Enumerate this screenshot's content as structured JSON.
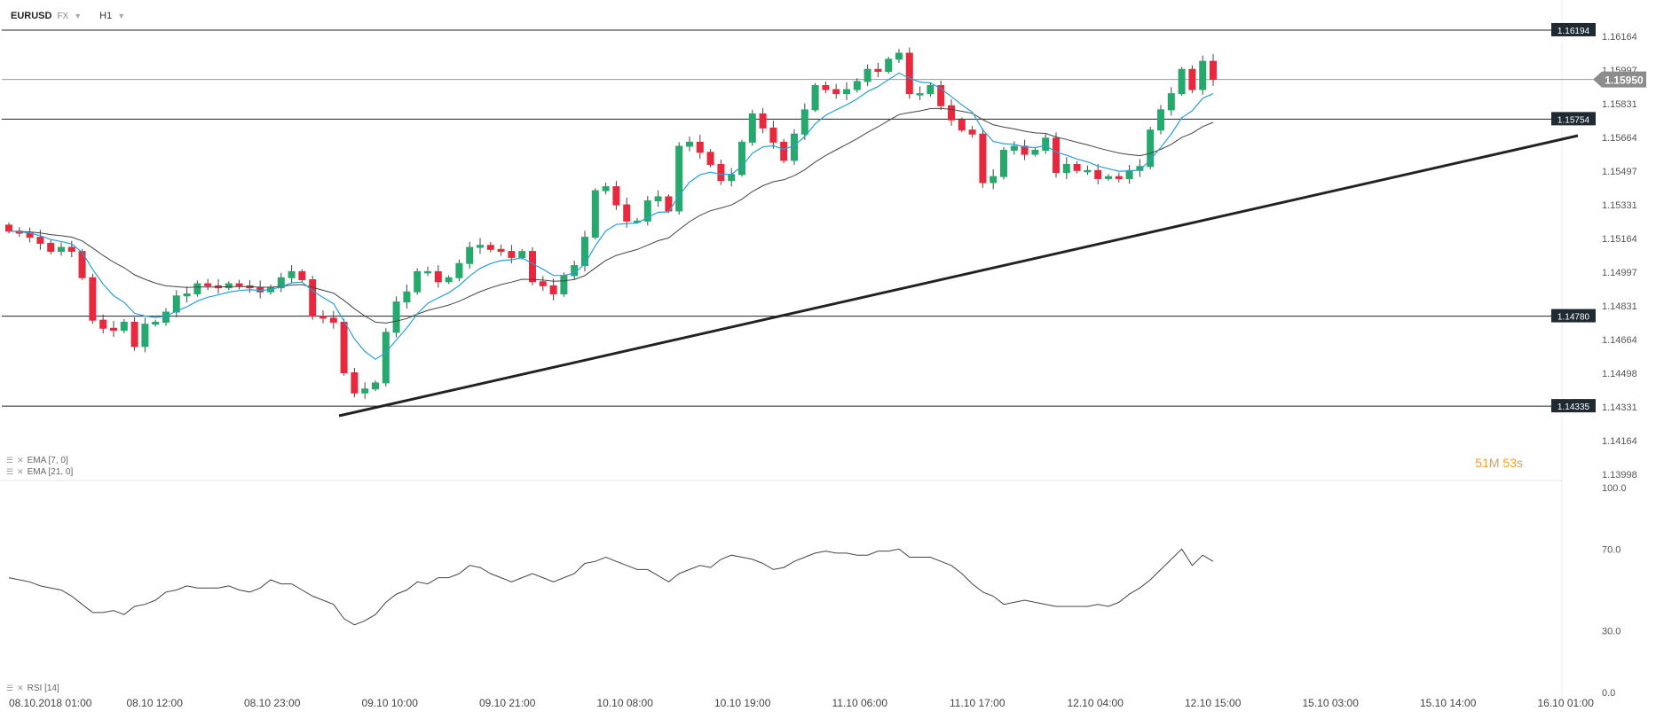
{
  "header": {
    "symbol": "EURUSD",
    "market": "FX",
    "timeframe": "H1"
  },
  "indicators": {
    "ema_fast": "EMA [7, 0]",
    "ema_slow": "EMA [21, 0]",
    "rsi": "RSI [14]"
  },
  "countdown": {
    "minutes": "51",
    "minutes_unit": "M",
    "seconds": "53",
    "seconds_unit": "s"
  },
  "colors": {
    "up": "#26a96c",
    "down": "#e8283c",
    "ema_fast": "#2a9fd6",
    "ema_slow": "#444444",
    "trendline": "#222222",
    "rsi": "#444444",
    "level_label_bg": "#1f2a33",
    "current_price_bg": "#8c8c8c"
  },
  "chart_data": [
    {
      "type": "candlestick",
      "symbol": "EURUSD",
      "interval": "H1",
      "ylim": [
        1.13998,
        1.16264
      ],
      "y_ticks": [
        "1.16164",
        "1.15997",
        "1.15831",
        "1.15664",
        "1.15497",
        "1.15331",
        "1.15164",
        "1.14997",
        "1.14831",
        "1.14664",
        "1.14498",
        "1.14331",
        "1.14164",
        "1.13998"
      ],
      "x_tick_labels": [
        "08.10.2018  01:00",
        "08.10  12:00",
        "08.10  23:00",
        "09.10  10:00",
        "09.10  21:00",
        "10.10  08:00",
        "10.10  19:00",
        "11.10  06:00",
        "11.10  17:00",
        "12.10  04:00",
        "12.10  15:00",
        "15.10  03:00",
        "15.10  14:00",
        "16.10  01:00"
      ],
      "horizontal_levels": [
        "1.16194",
        "1.15754",
        "1.14780",
        "1.14335"
      ],
      "current_price": "1.15950",
      "ohlc_close": [
        1.152,
        1.1519,
        1.1517,
        1.1514,
        1.151,
        1.1512,
        1.151,
        1.1497,
        1.1476,
        1.1472,
        1.1471,
        1.1475,
        1.1463,
        1.1474,
        1.1475,
        1.148,
        1.1488,
        1.1489,
        1.1494,
        1.1493,
        1.1492,
        1.1494,
        1.1493,
        1.1492,
        1.149,
        1.1492,
        1.1497,
        1.15,
        1.1496,
        1.1478,
        1.1477,
        1.1475,
        1.145,
        1.144,
        1.1442,
        1.1445,
        1.147,
        1.1485,
        1.149,
        1.15,
        1.15,
        1.1495,
        1.1497,
        1.1504,
        1.1512,
        1.1513,
        1.1511,
        1.151,
        1.1507,
        1.151,
        1.1495,
        1.1493,
        1.1489,
        1.1498,
        1.1503,
        1.1517,
        1.154,
        1.1542,
        1.1533,
        1.1525,
        1.1525,
        1.1535,
        1.1537,
        1.153,
        1.1562,
        1.1564,
        1.1559,
        1.1553,
        1.1545,
        1.1548,
        1.1564,
        1.1578,
        1.1571,
        1.1564,
        1.1555,
        1.1568,
        1.158,
        1.1592,
        1.159,
        1.1588,
        1.159,
        1.1594,
        1.16,
        1.1599,
        1.1605,
        1.1608,
        1.1588,
        1.1588,
        1.1592,
        1.1582,
        1.1575,
        1.157,
        1.1568,
        1.1544,
        1.1547,
        1.156,
        1.1562,
        1.1558,
        1.156,
        1.1566,
        1.1549,
        1.1553,
        1.155,
        1.155,
        1.1546,
        1.1547,
        1.1546,
        1.155,
        1.1552,
        1.157,
        1.158,
        1.1588,
        1.16,
        1.159,
        1.1604,
        1.1595
      ],
      "ema": [
        {
          "name": "EMA [7, 0]",
          "period": 7
        },
        {
          "name": "EMA [21, 0]",
          "period": 21
        }
      ]
    },
    {
      "type": "line",
      "indicator": "RSI [14]",
      "ylim": [
        0,
        100
      ],
      "y_ticks": [
        "100.0",
        "70.0",
        "30.0",
        "0.0"
      ],
      "values": [
        56,
        55,
        54,
        52,
        51,
        50,
        47,
        43,
        39,
        39,
        40,
        38,
        42,
        43,
        45,
        49,
        50,
        52,
        51,
        51,
        51,
        52,
        50,
        49,
        51,
        55,
        53,
        53,
        50,
        47,
        45,
        43,
        36,
        33,
        35,
        38,
        44,
        48,
        50,
        54,
        53,
        56,
        56,
        58,
        62,
        61,
        58,
        56,
        54,
        56,
        58,
        56,
        54,
        56,
        58,
        63,
        64,
        66,
        64,
        62,
        60,
        60,
        57,
        54,
        58,
        60,
        62,
        61,
        65,
        67,
        66,
        65,
        63,
        60,
        61,
        64,
        66,
        68,
        69,
        68,
        68,
        67,
        67,
        69,
        69,
        70,
        66,
        66,
        66,
        64,
        62,
        58,
        53,
        49,
        47,
        43,
        44,
        45,
        44,
        43,
        42,
        42,
        42,
        42,
        43,
        42,
        44,
        48,
        51,
        55,
        60,
        65,
        70,
        62,
        67,
        64
      ]
    }
  ]
}
